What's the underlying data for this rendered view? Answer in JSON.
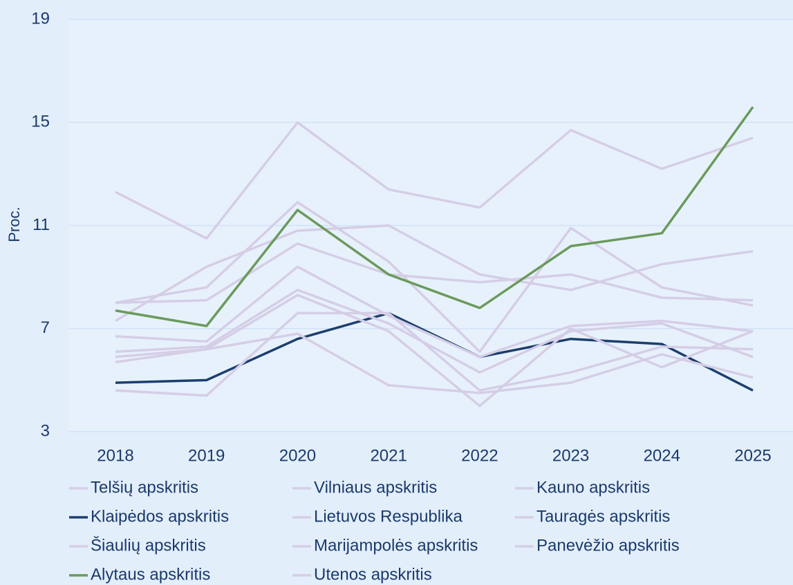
{
  "chart_data": {
    "type": "line",
    "y_label": "Proc.",
    "categories": [
      "2018",
      "2019",
      "2020",
      "2021",
      "2022",
      "2023",
      "2024",
      "2025"
    ],
    "ylim": [
      3,
      19
    ],
    "yticks": [
      3,
      7,
      11,
      15,
      19
    ],
    "grid": true,
    "legend": "bottom",
    "series": [
      {
        "name": "Telšių apskritis",
        "color": "#d5cde6",
        "values": [
          12.3,
          10.5,
          15.0,
          12.4,
          11.7,
          14.7,
          13.2,
          14.4
        ]
      },
      {
        "name": "Vilniaus apskritis",
        "color": "#d5cde6",
        "values": [
          8.0,
          8.6,
          11.9,
          9.6,
          6.1,
          10.9,
          8.6,
          7.9
        ]
      },
      {
        "name": "Kauno apskritis",
        "color": "#d5cde6",
        "values": [
          7.3,
          9.4,
          10.8,
          11.0,
          9.1,
          8.5,
          9.5,
          10.0
        ]
      },
      {
        "name": "Klaipėdos apskritis",
        "color": "#1b3f6e",
        "values": [
          4.9,
          5.0,
          6.6,
          7.6,
          5.9,
          6.6,
          6.4,
          4.6
        ]
      },
      {
        "name": "Lietuvos Respublika",
        "color": "#d5cde6",
        "values": [
          8.0,
          8.1,
          10.3,
          9.1,
          8.8,
          9.1,
          8.2,
          8.1
        ]
      },
      {
        "name": "Tauragės apskritis",
        "color": "#d5cde6",
        "values": [
          6.7,
          6.5,
          9.4,
          7.5,
          5.9,
          7.1,
          7.3,
          6.9
        ]
      },
      {
        "name": "Šiaulių apskritis",
        "color": "#d5cde6",
        "values": [
          6.1,
          6.3,
          8.5,
          7.2,
          5.3,
          6.9,
          7.2,
          5.9
        ]
      },
      {
        "name": "Marijampolės apskritis",
        "color": "#d5cde6",
        "values": [
          5.7,
          6.2,
          8.3,
          6.9,
          4.0,
          7.0,
          5.5,
          6.9
        ]
      },
      {
        "name": "Panevėžio apskritis",
        "color": "#d5cde6",
        "values": [
          4.6,
          4.4,
          7.6,
          7.6,
          4.6,
          5.3,
          6.3,
          6.2
        ]
      },
      {
        "name": "Alytaus apskritis",
        "color": "#6a9a5c",
        "values": [
          7.7,
          7.1,
          11.6,
          9.1,
          7.8,
          10.2,
          10.7,
          15.6
        ]
      },
      {
        "name": "Utenos apskritis",
        "color": "#d5cde6",
        "values": [
          5.9,
          6.2,
          6.8,
          4.8,
          4.5,
          4.9,
          6.0,
          5.1
        ]
      }
    ]
  }
}
